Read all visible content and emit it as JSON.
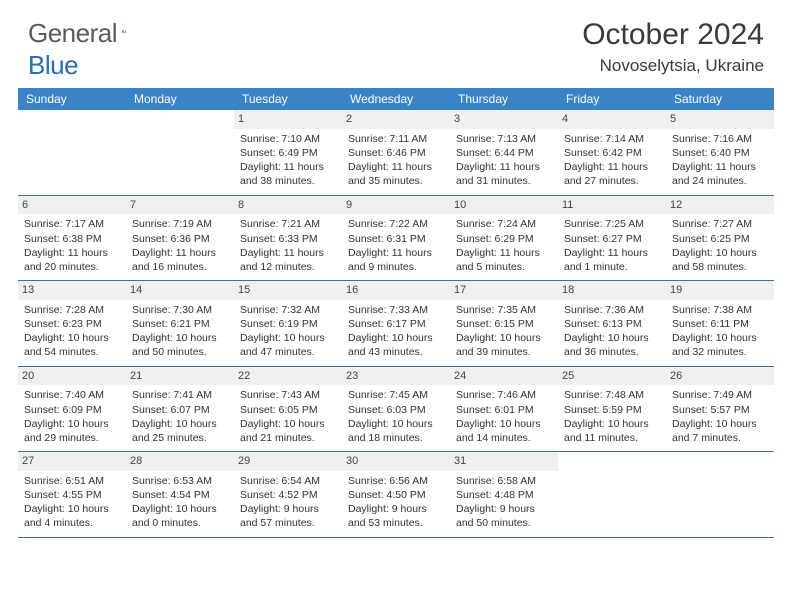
{
  "brand": {
    "text_gray": "General",
    "text_blue": "Blue",
    "icon_color": "#2a6db5"
  },
  "header": {
    "month_title": "October 2024",
    "location": "Novoselytsia, Ukraine"
  },
  "styling": {
    "header_bg": "#3b83c7",
    "header_text": "#ffffff",
    "daynum_bg": "#eef0f2",
    "border_color": "#3b6fa5",
    "body_text": "#333333",
    "title_text": "#3a3a3a",
    "logo_gray": "#5b5b5b",
    "font_family": "Arial",
    "month_fontsize": 30,
    "location_fontsize": 17,
    "weekday_fontsize": 12,
    "cell_fontsize": 10.5
  },
  "weekdays": [
    "Sunday",
    "Monday",
    "Tuesday",
    "Wednesday",
    "Thursday",
    "Friday",
    "Saturday"
  ],
  "weeks": [
    [
      {
        "empty": true
      },
      {
        "empty": true
      },
      {
        "num": "1",
        "sunrise": "Sunrise: 7:10 AM",
        "sunset": "Sunset: 6:49 PM",
        "daylight1": "Daylight: 11 hours",
        "daylight2": "and 38 minutes."
      },
      {
        "num": "2",
        "sunrise": "Sunrise: 7:11 AM",
        "sunset": "Sunset: 6:46 PM",
        "daylight1": "Daylight: 11 hours",
        "daylight2": "and 35 minutes."
      },
      {
        "num": "3",
        "sunrise": "Sunrise: 7:13 AM",
        "sunset": "Sunset: 6:44 PM",
        "daylight1": "Daylight: 11 hours",
        "daylight2": "and 31 minutes."
      },
      {
        "num": "4",
        "sunrise": "Sunrise: 7:14 AM",
        "sunset": "Sunset: 6:42 PM",
        "daylight1": "Daylight: 11 hours",
        "daylight2": "and 27 minutes."
      },
      {
        "num": "5",
        "sunrise": "Sunrise: 7:16 AM",
        "sunset": "Sunset: 6:40 PM",
        "daylight1": "Daylight: 11 hours",
        "daylight2": "and 24 minutes."
      }
    ],
    [
      {
        "num": "6",
        "sunrise": "Sunrise: 7:17 AM",
        "sunset": "Sunset: 6:38 PM",
        "daylight1": "Daylight: 11 hours",
        "daylight2": "and 20 minutes."
      },
      {
        "num": "7",
        "sunrise": "Sunrise: 7:19 AM",
        "sunset": "Sunset: 6:36 PM",
        "daylight1": "Daylight: 11 hours",
        "daylight2": "and 16 minutes."
      },
      {
        "num": "8",
        "sunrise": "Sunrise: 7:21 AM",
        "sunset": "Sunset: 6:33 PM",
        "daylight1": "Daylight: 11 hours",
        "daylight2": "and 12 minutes."
      },
      {
        "num": "9",
        "sunrise": "Sunrise: 7:22 AM",
        "sunset": "Sunset: 6:31 PM",
        "daylight1": "Daylight: 11 hours",
        "daylight2": "and 9 minutes."
      },
      {
        "num": "10",
        "sunrise": "Sunrise: 7:24 AM",
        "sunset": "Sunset: 6:29 PM",
        "daylight1": "Daylight: 11 hours",
        "daylight2": "and 5 minutes."
      },
      {
        "num": "11",
        "sunrise": "Sunrise: 7:25 AM",
        "sunset": "Sunset: 6:27 PM",
        "daylight1": "Daylight: 11 hours",
        "daylight2": "and 1 minute."
      },
      {
        "num": "12",
        "sunrise": "Sunrise: 7:27 AM",
        "sunset": "Sunset: 6:25 PM",
        "daylight1": "Daylight: 10 hours",
        "daylight2": "and 58 minutes."
      }
    ],
    [
      {
        "num": "13",
        "sunrise": "Sunrise: 7:28 AM",
        "sunset": "Sunset: 6:23 PM",
        "daylight1": "Daylight: 10 hours",
        "daylight2": "and 54 minutes."
      },
      {
        "num": "14",
        "sunrise": "Sunrise: 7:30 AM",
        "sunset": "Sunset: 6:21 PM",
        "daylight1": "Daylight: 10 hours",
        "daylight2": "and 50 minutes."
      },
      {
        "num": "15",
        "sunrise": "Sunrise: 7:32 AM",
        "sunset": "Sunset: 6:19 PM",
        "daylight1": "Daylight: 10 hours",
        "daylight2": "and 47 minutes."
      },
      {
        "num": "16",
        "sunrise": "Sunrise: 7:33 AM",
        "sunset": "Sunset: 6:17 PM",
        "daylight1": "Daylight: 10 hours",
        "daylight2": "and 43 minutes."
      },
      {
        "num": "17",
        "sunrise": "Sunrise: 7:35 AM",
        "sunset": "Sunset: 6:15 PM",
        "daylight1": "Daylight: 10 hours",
        "daylight2": "and 39 minutes."
      },
      {
        "num": "18",
        "sunrise": "Sunrise: 7:36 AM",
        "sunset": "Sunset: 6:13 PM",
        "daylight1": "Daylight: 10 hours",
        "daylight2": "and 36 minutes."
      },
      {
        "num": "19",
        "sunrise": "Sunrise: 7:38 AM",
        "sunset": "Sunset: 6:11 PM",
        "daylight1": "Daylight: 10 hours",
        "daylight2": "and 32 minutes."
      }
    ],
    [
      {
        "num": "20",
        "sunrise": "Sunrise: 7:40 AM",
        "sunset": "Sunset: 6:09 PM",
        "daylight1": "Daylight: 10 hours",
        "daylight2": "and 29 minutes."
      },
      {
        "num": "21",
        "sunrise": "Sunrise: 7:41 AM",
        "sunset": "Sunset: 6:07 PM",
        "daylight1": "Daylight: 10 hours",
        "daylight2": "and 25 minutes."
      },
      {
        "num": "22",
        "sunrise": "Sunrise: 7:43 AM",
        "sunset": "Sunset: 6:05 PM",
        "daylight1": "Daylight: 10 hours",
        "daylight2": "and 21 minutes."
      },
      {
        "num": "23",
        "sunrise": "Sunrise: 7:45 AM",
        "sunset": "Sunset: 6:03 PM",
        "daylight1": "Daylight: 10 hours",
        "daylight2": "and 18 minutes."
      },
      {
        "num": "24",
        "sunrise": "Sunrise: 7:46 AM",
        "sunset": "Sunset: 6:01 PM",
        "daylight1": "Daylight: 10 hours",
        "daylight2": "and 14 minutes."
      },
      {
        "num": "25",
        "sunrise": "Sunrise: 7:48 AM",
        "sunset": "Sunset: 5:59 PM",
        "daylight1": "Daylight: 10 hours",
        "daylight2": "and 11 minutes."
      },
      {
        "num": "26",
        "sunrise": "Sunrise: 7:49 AM",
        "sunset": "Sunset: 5:57 PM",
        "daylight1": "Daylight: 10 hours",
        "daylight2": "and 7 minutes."
      }
    ],
    [
      {
        "num": "27",
        "sunrise": "Sunrise: 6:51 AM",
        "sunset": "Sunset: 4:55 PM",
        "daylight1": "Daylight: 10 hours",
        "daylight2": "and 4 minutes."
      },
      {
        "num": "28",
        "sunrise": "Sunrise: 6:53 AM",
        "sunset": "Sunset: 4:54 PM",
        "daylight1": "Daylight: 10 hours",
        "daylight2": "and 0 minutes."
      },
      {
        "num": "29",
        "sunrise": "Sunrise: 6:54 AM",
        "sunset": "Sunset: 4:52 PM",
        "daylight1": "Daylight: 9 hours",
        "daylight2": "and 57 minutes."
      },
      {
        "num": "30",
        "sunrise": "Sunrise: 6:56 AM",
        "sunset": "Sunset: 4:50 PM",
        "daylight1": "Daylight: 9 hours",
        "daylight2": "and 53 minutes."
      },
      {
        "num": "31",
        "sunrise": "Sunrise: 6:58 AM",
        "sunset": "Sunset: 4:48 PM",
        "daylight1": "Daylight: 9 hours",
        "daylight2": "and 50 minutes."
      },
      {
        "empty": true
      },
      {
        "empty": true
      }
    ]
  ]
}
